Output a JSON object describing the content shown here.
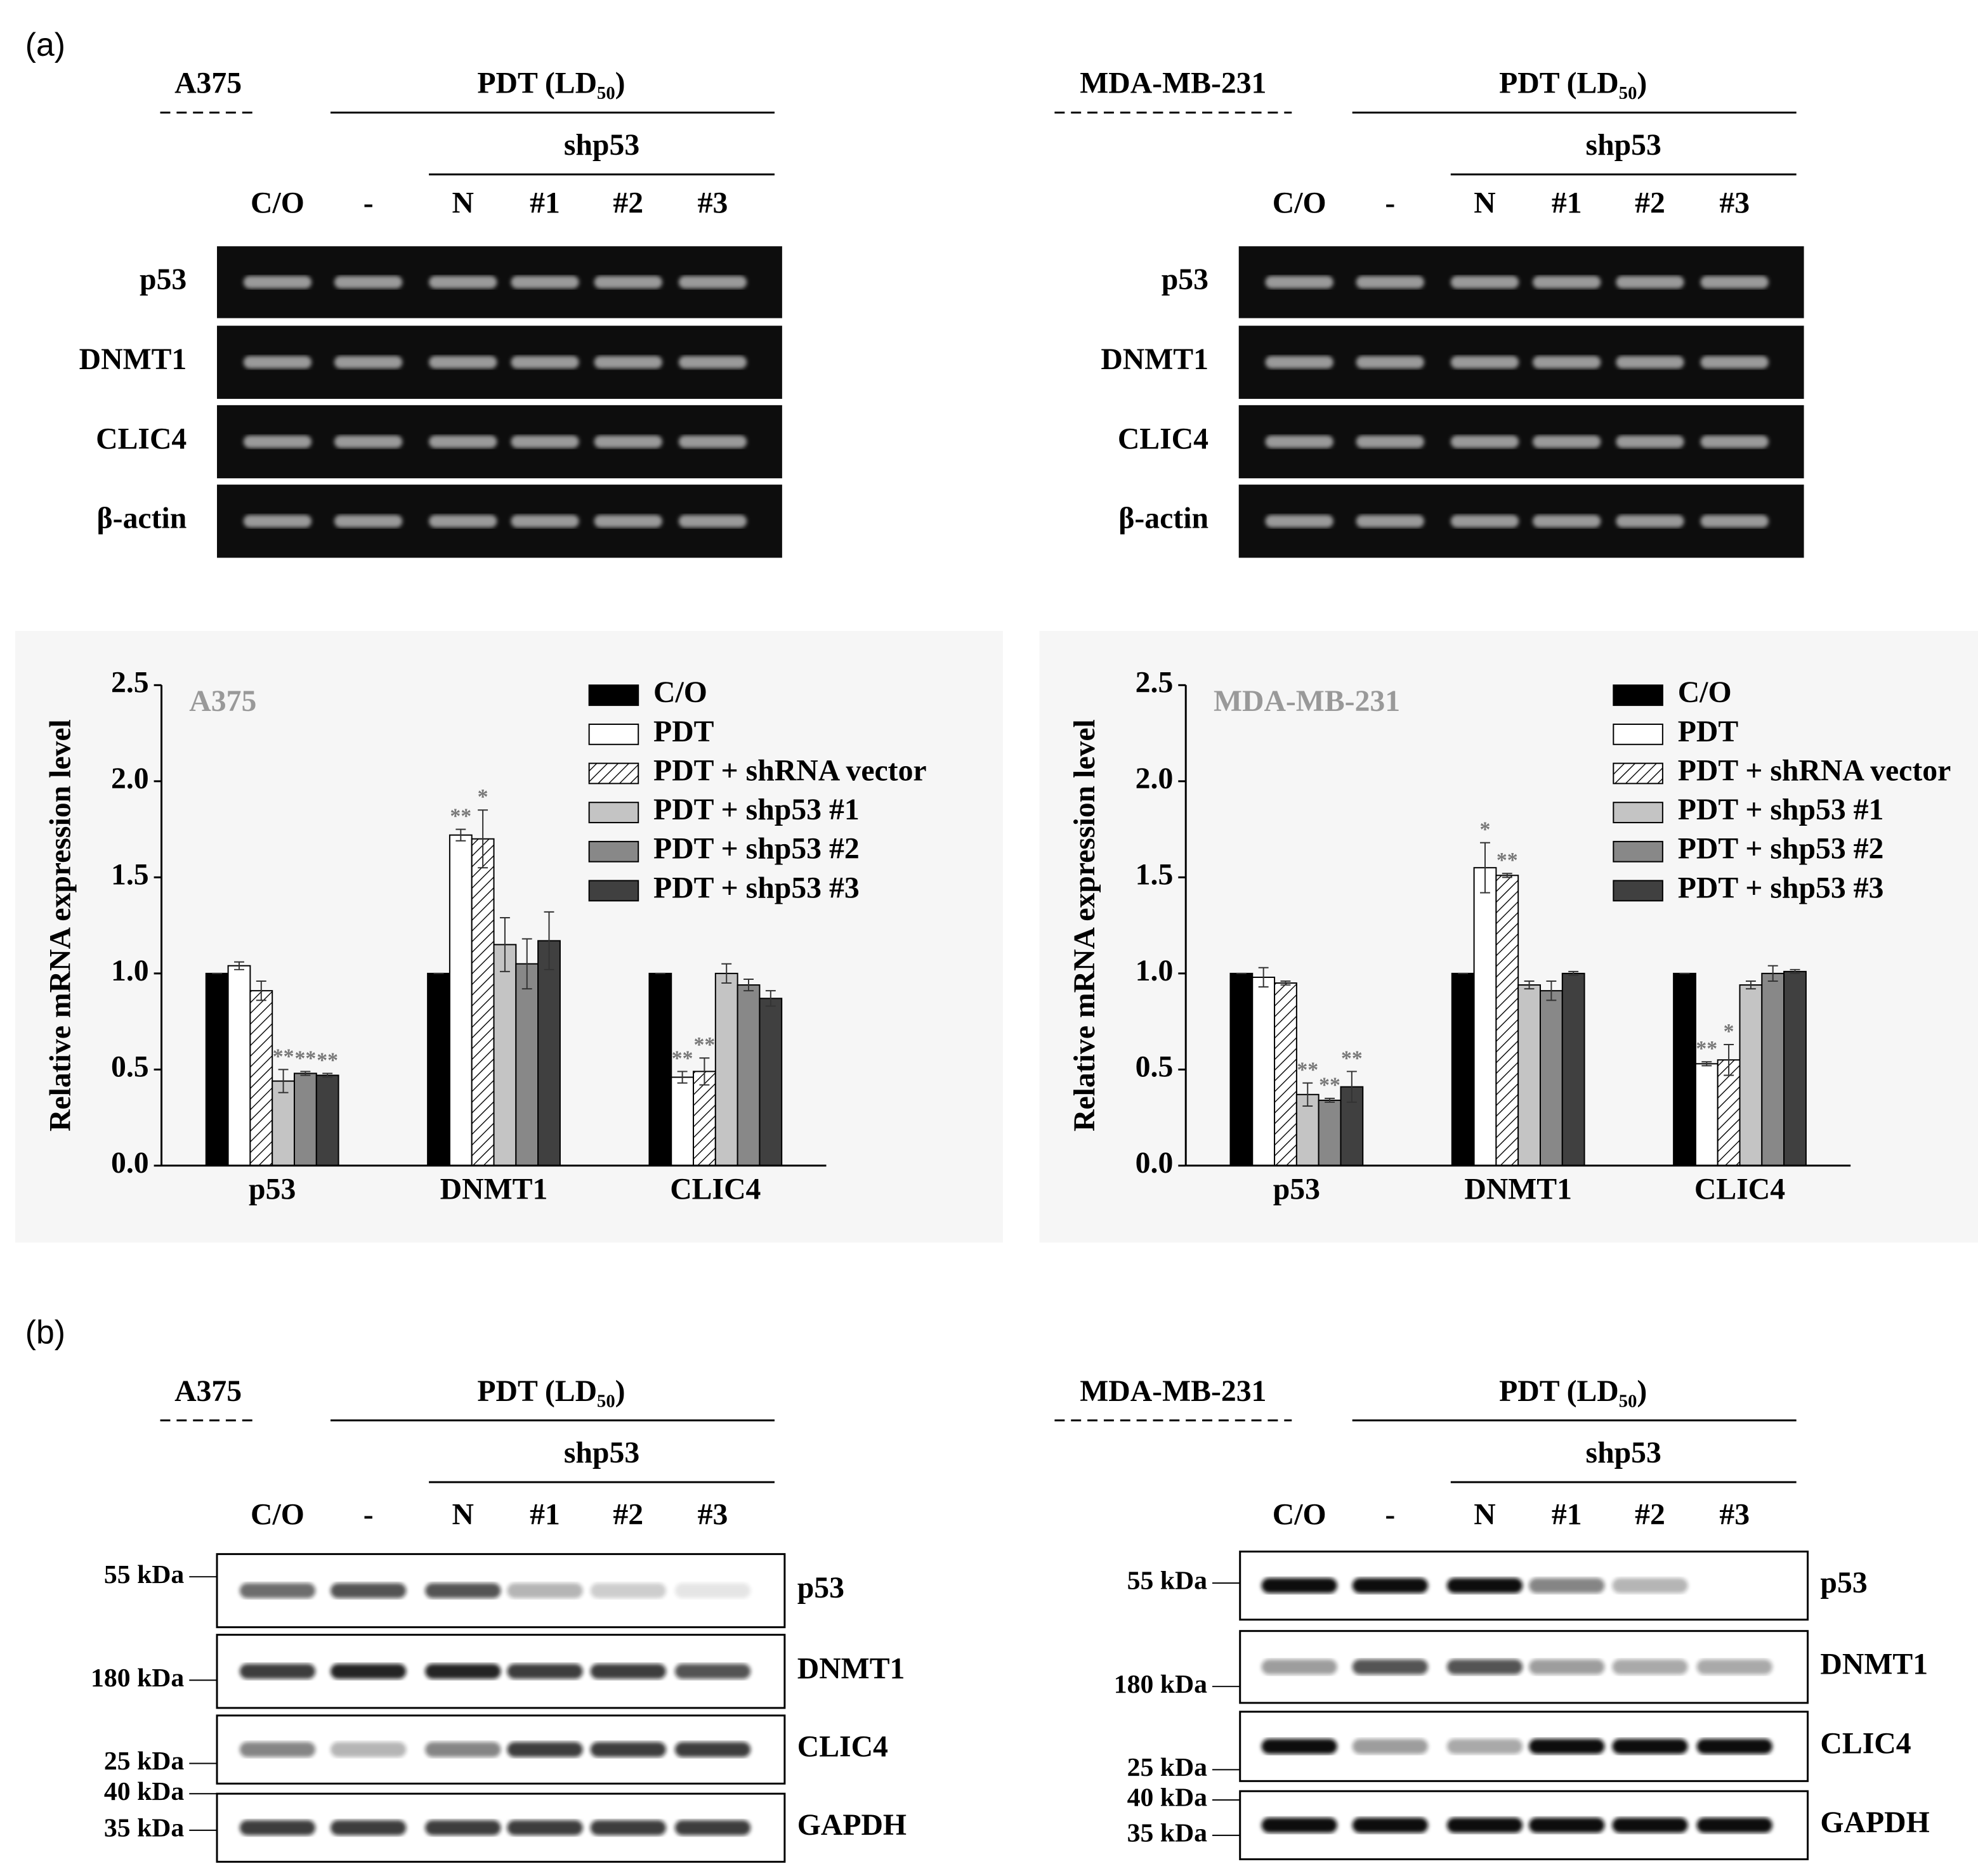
{
  "panel_a": {
    "label": "(a)",
    "gels": [
      {
        "cell_line": "A375",
        "treatment": "PDT (LD₅₀)",
        "knockdown": "shp53",
        "lanes": [
          "C/O",
          "-",
          "N",
          "#1",
          "#2",
          "#3"
        ],
        "rows": [
          "p53",
          "DNMT1",
          "CLIC4",
          "β-actin"
        ]
      },
      {
        "cell_line": "MDA-MB-231",
        "treatment": "PDT (LD₅₀)",
        "knockdown": "shp53",
        "lanes": [
          "C/O",
          "-",
          "N",
          "#1",
          "#2",
          "#3"
        ],
        "rows": [
          "p53",
          "DNMT1",
          "CLIC4",
          "β-actin"
        ]
      }
    ]
  },
  "chart_data": [
    {
      "type": "bar",
      "title": "A375",
      "ylabel": "Relative mRNA expression level",
      "categories": [
        "p53",
        "DNMT1",
        "CLIC4"
      ],
      "ylim": [
        0,
        2.5
      ],
      "yticks": [
        {
          "value": 0,
          "label": "0.0"
        },
        0.5,
        {
          "value": 1,
          "label": "1.0"
        },
        1.5,
        {
          "value": 2,
          "label": "2.0"
        },
        2.5
      ],
      "legend": "upper right",
      "series": [
        {
          "name": "C/O",
          "color": "#000000",
          "values": [
            1.0,
            1.0,
            1.0
          ],
          "errors": [
            0,
            0,
            0
          ],
          "annotations": [
            null,
            null,
            null
          ]
        },
        {
          "name": "PDT",
          "color": "#ffffff",
          "values": [
            1.04,
            1.72,
            0.46
          ],
          "errors": [
            0.02,
            0.03,
            0.03
          ],
          "annotations": [
            null,
            "**",
            "**"
          ]
        },
        {
          "name": "PDT + shRNA vector",
          "color": "#ffffff",
          "pattern": "hatch",
          "values": [
            0.91,
            1.7,
            0.49
          ],
          "errors": [
            0.05,
            0.15,
            0.07
          ],
          "annotations": [
            null,
            "*",
            "**"
          ]
        },
        {
          "name": "PDT + shp53 #1",
          "color": "#c4c4c4",
          "values": [
            0.44,
            1.15,
            1.0
          ],
          "errors": [
            0.06,
            0.14,
            0.05
          ],
          "annotations": [
            "**",
            null,
            null
          ]
        },
        {
          "name": "PDT + shp53 #2",
          "color": "#888888",
          "values": [
            0.48,
            1.05,
            0.94
          ],
          "errors": [
            0.01,
            0.13,
            0.03
          ],
          "annotations": [
            "**",
            null,
            null
          ]
        },
        {
          "name": "PDT + shp53 #3",
          "color": "#404040",
          "values": [
            0.47,
            1.17,
            0.87
          ],
          "errors": [
            0.01,
            0.15,
            0.04
          ],
          "annotations": [
            "**",
            null,
            null
          ]
        }
      ]
    },
    {
      "type": "bar",
      "title": "MDA-MB-231",
      "ylabel": "Relative mRNA expression level",
      "categories": [
        "p53",
        "DNMT1",
        "CLIC4"
      ],
      "ylim": [
        0,
        2.5
      ],
      "yticks": [
        {
          "value": 0,
          "label": "0.0"
        },
        0.5,
        {
          "value": 1,
          "label": "1.0"
        },
        1.5,
        {
          "value": 2,
          "label": "2.0"
        },
        2.5
      ],
      "legend": "upper right",
      "series": [
        {
          "name": "C/O",
          "color": "#000000",
          "values": [
            1.0,
            1.0,
            1.0
          ],
          "errors": [
            0,
            0,
            0
          ],
          "annotations": [
            null,
            null,
            null
          ]
        },
        {
          "name": "PDT",
          "color": "#ffffff",
          "values": [
            0.98,
            1.55,
            0.53
          ],
          "errors": [
            0.05,
            0.13,
            0.01
          ],
          "annotations": [
            null,
            "*",
            "**"
          ]
        },
        {
          "name": "PDT + shRNA vector",
          "color": "#ffffff",
          "pattern": "hatch",
          "values": [
            0.95,
            1.51,
            0.55
          ],
          "errors": [
            0.01,
            0.01,
            0.08
          ],
          "annotations": [
            null,
            "**",
            "*"
          ]
        },
        {
          "name": "PDT + shp53 #1",
          "color": "#c4c4c4",
          "values": [
            0.37,
            0.94,
            0.94
          ],
          "errors": [
            0.06,
            0.02,
            0.02
          ],
          "annotations": [
            "**",
            null,
            null
          ]
        },
        {
          "name": "PDT + shp53 #2",
          "color": "#888888",
          "values": [
            0.34,
            0.91,
            1.0
          ],
          "errors": [
            0.01,
            0.05,
            0.04
          ],
          "annotations": [
            "**",
            null,
            null
          ]
        },
        {
          "name": "PDT + shp53 #3",
          "color": "#404040",
          "values": [
            0.41,
            1.0,
            1.01
          ],
          "errors": [
            0.08,
            0.01,
            0.01
          ],
          "annotations": [
            "**",
            null,
            null
          ]
        }
      ]
    }
  ],
  "panel_b": {
    "label": "(b)",
    "blots": [
      {
        "cell_line": "A375",
        "treatment": "PDT (LD₅₀)",
        "knockdown": "shp53",
        "lanes": [
          "C/O",
          "-",
          "N",
          "#1",
          "#2",
          "#3"
        ],
        "rows": [
          "p53",
          "DNMT1",
          "CLIC4",
          "GAPDH"
        ],
        "markers": [
          "55 kDa",
          "180 kDa",
          "25 kDa",
          "40 kDa",
          "35 kDa"
        ]
      },
      {
        "cell_line": "MDA-MB-231",
        "treatment": "PDT (LD₅₀)",
        "knockdown": "shp53",
        "lanes": [
          "C/O",
          "-",
          "N",
          "#1",
          "#2",
          "#3"
        ],
        "rows": [
          "p53",
          "DNMT1",
          "CLIC4",
          "GAPDH"
        ],
        "markers": [
          "55 kDa",
          "180 kDa",
          "25 kDa",
          "40 kDa",
          "35 kDa"
        ]
      }
    ]
  }
}
